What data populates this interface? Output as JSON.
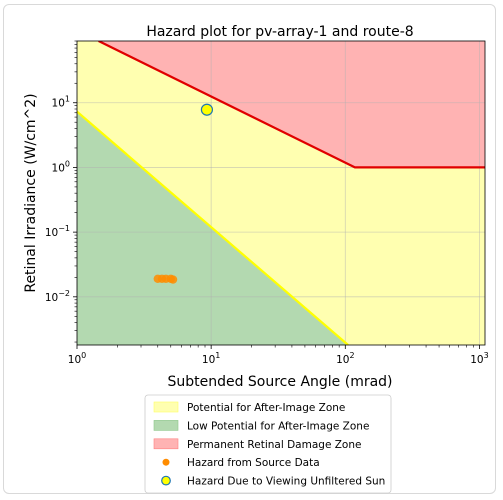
{
  "chart_data": {
    "type": "scatter",
    "title": "Hazard plot for pv-array-1 and route-8",
    "xlabel": "Subtended Source Angle (mrad)",
    "ylabel": "Retinal Irradiance (W/cm^2)",
    "x_scale": "log",
    "y_scale": "log",
    "xlim": [
      1,
      1100
    ],
    "ylim": [
      0.0018,
      90
    ],
    "x_ticks": [
      {
        "value": 1,
        "base": "10",
        "exp": "0"
      },
      {
        "value": 10,
        "base": "10",
        "exp": "1"
      },
      {
        "value": 100,
        "base": "10",
        "exp": "2"
      },
      {
        "value": 1000,
        "base": "10",
        "exp": "3"
      }
    ],
    "y_ticks": [
      {
        "value": 0.01,
        "base": "10",
        "exp": "−2"
      },
      {
        "value": 0.1,
        "base": "10",
        "exp": "−1"
      },
      {
        "value": 1,
        "base": "10",
        "exp": "0"
      },
      {
        "value": 10,
        "base": "10",
        "exp": "1"
      }
    ],
    "grid": true,
    "legend_position": "bottom",
    "zones": {
      "permanent_damage_boundary": [
        [
          1.45,
          90
        ],
        [
          118,
          1.0
        ],
        [
          1100,
          1.0
        ]
      ],
      "low_potential_boundary": [
        [
          1,
          7.3
        ],
        [
          105,
          0.0018
        ]
      ]
    },
    "series": [
      {
        "name": "Hazard from Source Data",
        "marker": "circle",
        "color": "#ff8c00",
        "points": [
          [
            4.0,
            0.019
          ],
          [
            4.3,
            0.019
          ],
          [
            4.6,
            0.019
          ],
          [
            5.0,
            0.019
          ],
          [
            5.2,
            0.0185
          ]
        ]
      },
      {
        "name": "Hazard Due to Viewing Unfiltered Sun",
        "marker": "circle",
        "color": "#ffff00",
        "edge_color": "#1f77b4",
        "points": [
          [
            9.3,
            7.8
          ]
        ]
      }
    ],
    "legend": [
      {
        "label": "Potential for After-Image Zone",
        "kind": "patch",
        "color": "#ffffb0",
        "edge": "#ffff66"
      },
      {
        "label": "Low Potential for After-Image Zone",
        "kind": "patch",
        "color": "#b3d9b0",
        "edge": "#8cc68a"
      },
      {
        "label": "Permanent Retinal Damage Zone",
        "kind": "patch",
        "color": "#ffb3b3",
        "edge": "#ff8080"
      },
      {
        "label": "Hazard from Source Data",
        "kind": "marker",
        "color": "#ff8c00",
        "edge": "#ff8c00"
      },
      {
        "label": "Hazard Due to Viewing Unfiltered Sun",
        "kind": "marker",
        "color": "#ffff00",
        "edge": "#1f77b4"
      }
    ],
    "colors": {
      "yellow_zone": "#ffffb0",
      "green_zone": "#b3d9b0",
      "red_zone": "#ffb3b3",
      "red_line": "#e00000",
      "yellow_line": "#ffff00"
    }
  }
}
